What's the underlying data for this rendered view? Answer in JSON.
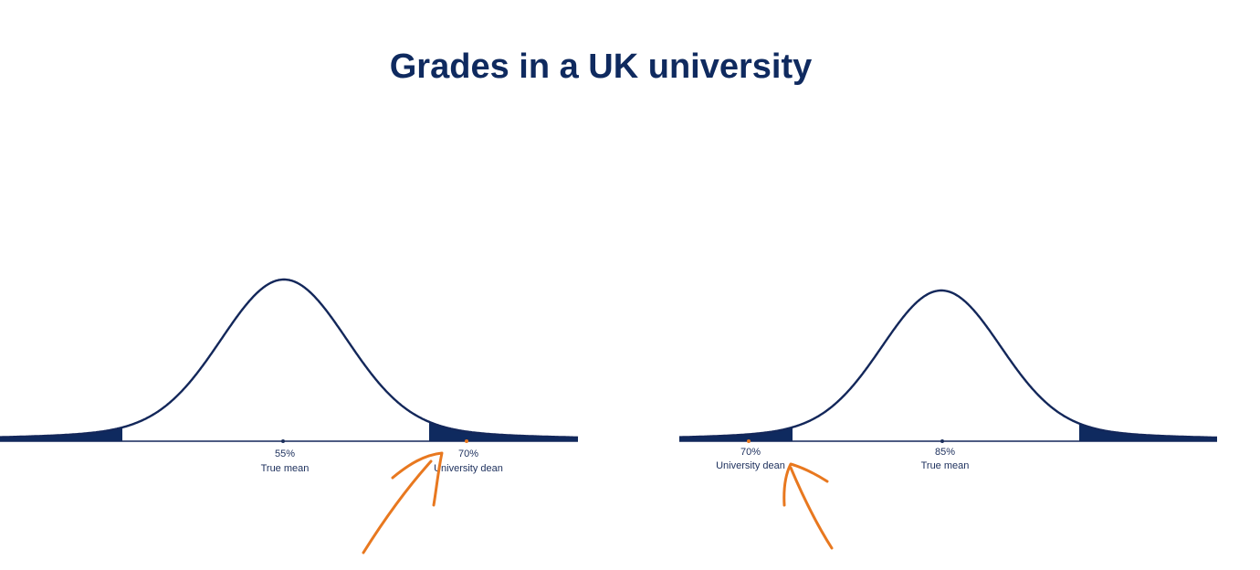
{
  "title": "Grades in a UK university",
  "colors": {
    "title": "#0f2a5f",
    "curve": "#13275a",
    "tail_fill": "#0f2a5f",
    "axis": "#13275a",
    "dot": "#1c2f5c",
    "annotation": "#e8781f",
    "label": "#1c2f5c"
  },
  "panels": [
    {
      "id": "left",
      "markers": [
        {
          "value_label": "55%",
          "caption": "True mean",
          "dot_color": "#1c2f5c"
        },
        {
          "value_label": "70%",
          "caption": "University dean",
          "dot_color": "#e8781f"
        }
      ]
    },
    {
      "id": "right",
      "markers": [
        {
          "value_label": "70%",
          "caption": "University dean",
          "dot_color": "#e8781f"
        },
        {
          "value_label": "85%",
          "caption": "True mean",
          "dot_color": "#1c2f5c"
        }
      ]
    }
  ],
  "annotations": [
    {
      "type": "hand-drawn-arrow",
      "color": "#e8781f",
      "points_to": "70% University dean (left)"
    },
    {
      "type": "hand-drawn-arrow",
      "color": "#e8781f",
      "points_to": "70% University dean (right)"
    }
  ]
}
